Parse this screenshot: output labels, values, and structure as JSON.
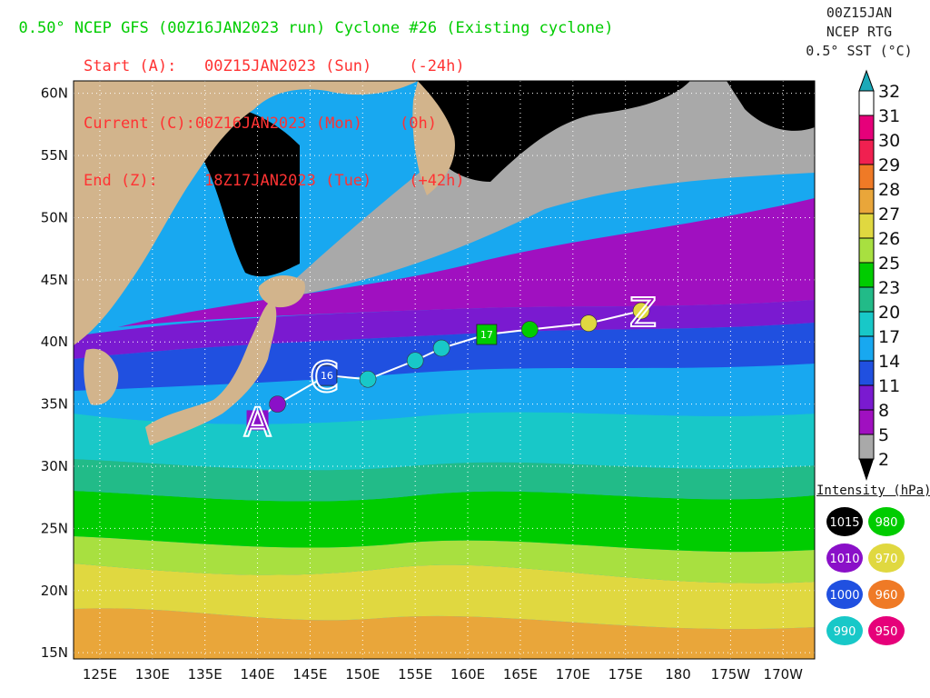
{
  "header": {
    "title": "0.50° NCEP GFS (00Z16JAN2023 run) Cyclone #26 (Existing cyclone)",
    "start_line": "Start (A):   00Z15JAN2023 (Sun)    (-24h)",
    "current_line": "Current (C):00Z16JAN2023 (Mon)    (0h)",
    "end_line": "End (Z):     18Z17JAN2023 (Tue)    (+42h)"
  },
  "product": {
    "line1": "00Z15JAN",
    "line2": "NCEP RTG",
    "line3": "0.5° SST (°C)"
  },
  "map": {
    "lat_labels": [
      "60N",
      "55N",
      "50N",
      "45N",
      "40N",
      "35N",
      "30N",
      "25N",
      "20N",
      "15N"
    ],
    "lon_labels": [
      "125E",
      "130E",
      "135E",
      "140E",
      "145E",
      "150E",
      "155E",
      "160E",
      "165E",
      "170E",
      "175E",
      "180",
      "175W",
      "170W"
    ],
    "colors": {
      "land": "#d2b48c",
      "ice_black": "#000000",
      "cold_gray": "#a9a9a9",
      "track": "#ffffff"
    }
  },
  "sst_colorbar": {
    "labels": [
      "32",
      "31",
      "30",
      "29",
      "28",
      "27",
      "26",
      "25",
      "23",
      "20",
      "17",
      "14",
      "11",
      "8",
      "5",
      "2"
    ],
    "colors": [
      "#1ba9b8",
      "#ffffff",
      "#e6007a",
      "#f02050",
      "#ef7a26",
      "#e9a63a",
      "#e0d840",
      "#a8e040",
      "#00cc00",
      "#22bb88",
      "#18c8c8",
      "#18a8f0",
      "#2050e0",
      "#7a1ad0",
      "#a010c0",
      "#a9a9a9"
    ]
  },
  "track": {
    "start_marker": "A",
    "current_marker": "C",
    "end_marker": "Z",
    "box_labels": [
      "16",
      "17"
    ],
    "points": [
      {
        "lon": 140.0,
        "lat": 33.7,
        "intensity": 1010,
        "kind": "start"
      },
      {
        "lon": 141.9,
        "lat": 35.0,
        "intensity": 1010,
        "kind": "dot"
      },
      {
        "lon": 146.6,
        "lat": 37.3,
        "intensity": 1000,
        "kind": "box",
        "label": "16"
      },
      {
        "lon": 150.5,
        "lat": 37.0,
        "intensity": 990,
        "kind": "dot"
      },
      {
        "lon": 155.0,
        "lat": 38.5,
        "intensity": 990,
        "kind": "dot"
      },
      {
        "lon": 157.5,
        "lat": 39.5,
        "intensity": 990,
        "kind": "dot"
      },
      {
        "lon": 161.8,
        "lat": 40.6,
        "intensity": 980,
        "kind": "box",
        "label": "17"
      },
      {
        "lon": 165.9,
        "lat": 41.0,
        "intensity": 980,
        "kind": "dot"
      },
      {
        "lon": 171.5,
        "lat": 41.5,
        "intensity": 970,
        "kind": "dot"
      },
      {
        "lon": 176.5,
        "lat": 42.5,
        "intensity": 970,
        "kind": "end"
      }
    ]
  },
  "intensity_legend": {
    "title": "Intensity (hPa):",
    "items": [
      {
        "value": "1015",
        "color": "#000000"
      },
      {
        "value": "980",
        "color": "#00cc00"
      },
      {
        "value": "1010",
        "color": "#8a10c8"
      },
      {
        "value": "970",
        "color": "#e0d840"
      },
      {
        "value": "1000",
        "color": "#2050e0"
      },
      {
        "value": "960",
        "color": "#ef7a26"
      },
      {
        "value": "990",
        "color": "#18c8c8"
      },
      {
        "value": "950",
        "color": "#e6007a"
      }
    ]
  }
}
